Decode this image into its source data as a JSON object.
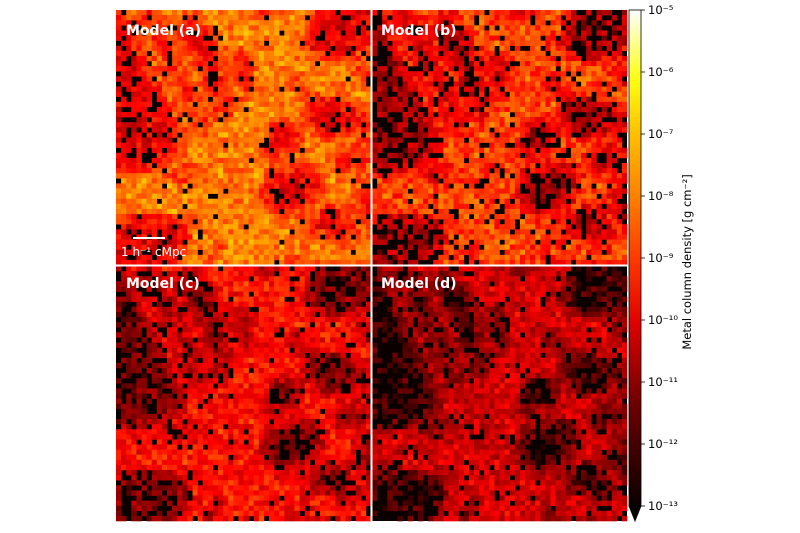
{
  "chart_data": {
    "type": "heatmap",
    "colormap": "hot",
    "colorbar_scale": "log",
    "colorbar_extend": "min",
    "panels": [
      {
        "label": "Model (a)",
        "mean_log10": -9.6,
        "spread": 0.9,
        "void_fraction": 0.18
      },
      {
        "label": "Model (b)",
        "mean_log10": -10.4,
        "spread": 1.0,
        "void_fraction": 0.38
      },
      {
        "label": "Model (c)",
        "mean_log10": -10.9,
        "spread": 0.9,
        "void_fraction": 0.3
      },
      {
        "label": "Model (d)",
        "mean_log10": -11.6,
        "spread": 0.9,
        "void_fraction": 0.4
      }
    ],
    "scale_bar_label": "1 h⁻¹ cMpc",
    "colorbar": {
      "label": "Metal column density [g cm⁻²]",
      "range_log10": [
        -13,
        -5
      ],
      "ticks": [
        {
          "value": -5,
          "label": "10⁻⁵"
        },
        {
          "value": -6,
          "label": "10⁻⁶"
        },
        {
          "value": -7,
          "label": "10⁻⁷"
        },
        {
          "value": -8,
          "label": "10⁻⁸"
        },
        {
          "value": -9,
          "label": "10⁻⁹"
        },
        {
          "value": -10,
          "label": "10⁻¹⁰"
        },
        {
          "value": -11,
          "label": "10⁻¹¹"
        },
        {
          "value": -12,
          "label": "10⁻¹²"
        },
        {
          "value": -13,
          "label": "10⁻¹³"
        }
      ]
    }
  }
}
